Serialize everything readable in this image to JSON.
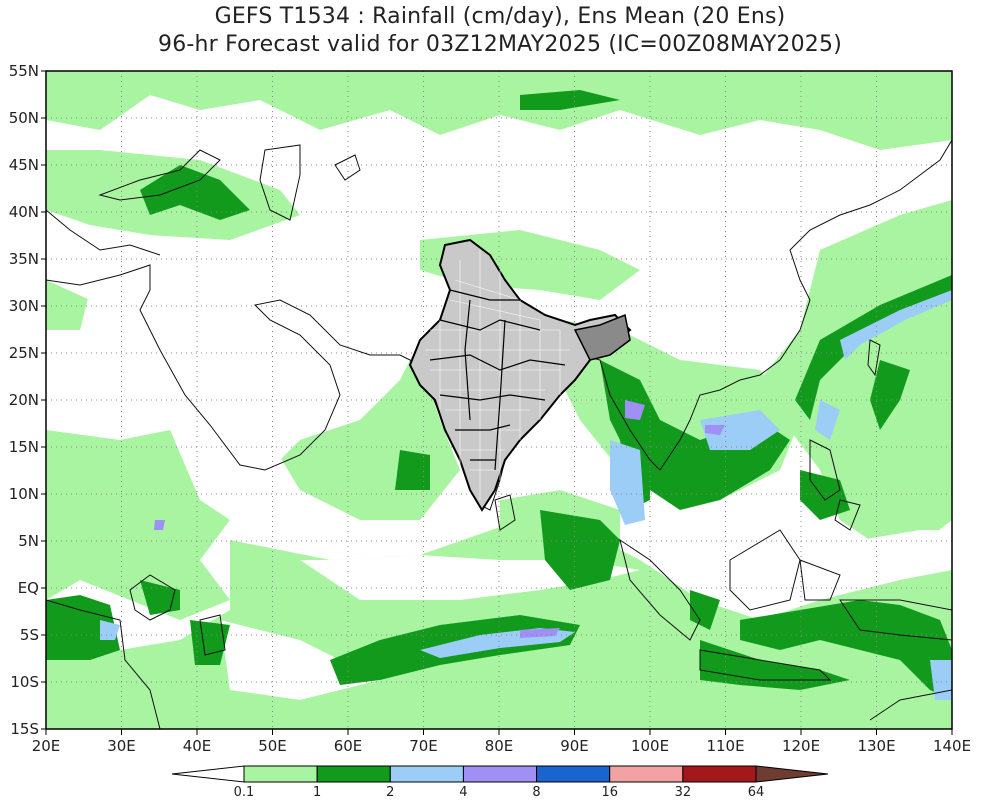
{
  "title_line1": "GEFS T1534 : Rainfall (cm/day), Ens Mean (20 Ens)",
  "title_line2": "96-hr Forecast valid for 03Z12MAY2025 (IC=00Z08MAY2025)",
  "map": {
    "lon_range": [
      20,
      140
    ],
    "lat_range": [
      -15,
      55
    ],
    "lon_ticks": [
      {
        "value": 20,
        "label": "20E"
      },
      {
        "value": 30,
        "label": "30E"
      },
      {
        "value": 40,
        "label": "40E"
      },
      {
        "value": 50,
        "label": "50E"
      },
      {
        "value": 60,
        "label": "60E"
      },
      {
        "value": 70,
        "label": "70E"
      },
      {
        "value": 80,
        "label": "80E"
      },
      {
        "value": 90,
        "label": "90E"
      },
      {
        "value": 100,
        "label": "100E"
      },
      {
        "value": 110,
        "label": "110E"
      },
      {
        "value": 120,
        "label": "120E"
      },
      {
        "value": 130,
        "label": "130E"
      },
      {
        "value": 140,
        "label": "140E"
      }
    ],
    "lat_ticks": [
      {
        "value": 55,
        "label": "55N"
      },
      {
        "value": 50,
        "label": "50N"
      },
      {
        "value": 45,
        "label": "45N"
      },
      {
        "value": 40,
        "label": "40N"
      },
      {
        "value": 35,
        "label": "35N"
      },
      {
        "value": 30,
        "label": "30N"
      },
      {
        "value": 25,
        "label": "25N"
      },
      {
        "value": 20,
        "label": "20N"
      },
      {
        "value": 15,
        "label": "15N"
      },
      {
        "value": 10,
        "label": "10N"
      },
      {
        "value": 5,
        "label": "5N"
      },
      {
        "value": 0,
        "label": "EQ"
      },
      {
        "value": -5,
        "label": "5S"
      },
      {
        "value": -10,
        "label": "10S"
      },
      {
        "value": -15,
        "label": "15S"
      }
    ],
    "grid": "dotted"
  },
  "colorbar": {
    "colors": [
      "#ffffff",
      "#a8f4a0",
      "#119a1c",
      "#9ccdf7",
      "#a090f6",
      "#1a64d0",
      "#f2a2a2",
      "#a4181c",
      "#6e3c30"
    ],
    "labels": [
      "0.1",
      "1",
      "2",
      "4",
      "8",
      "16",
      "32",
      "64"
    ]
  }
}
